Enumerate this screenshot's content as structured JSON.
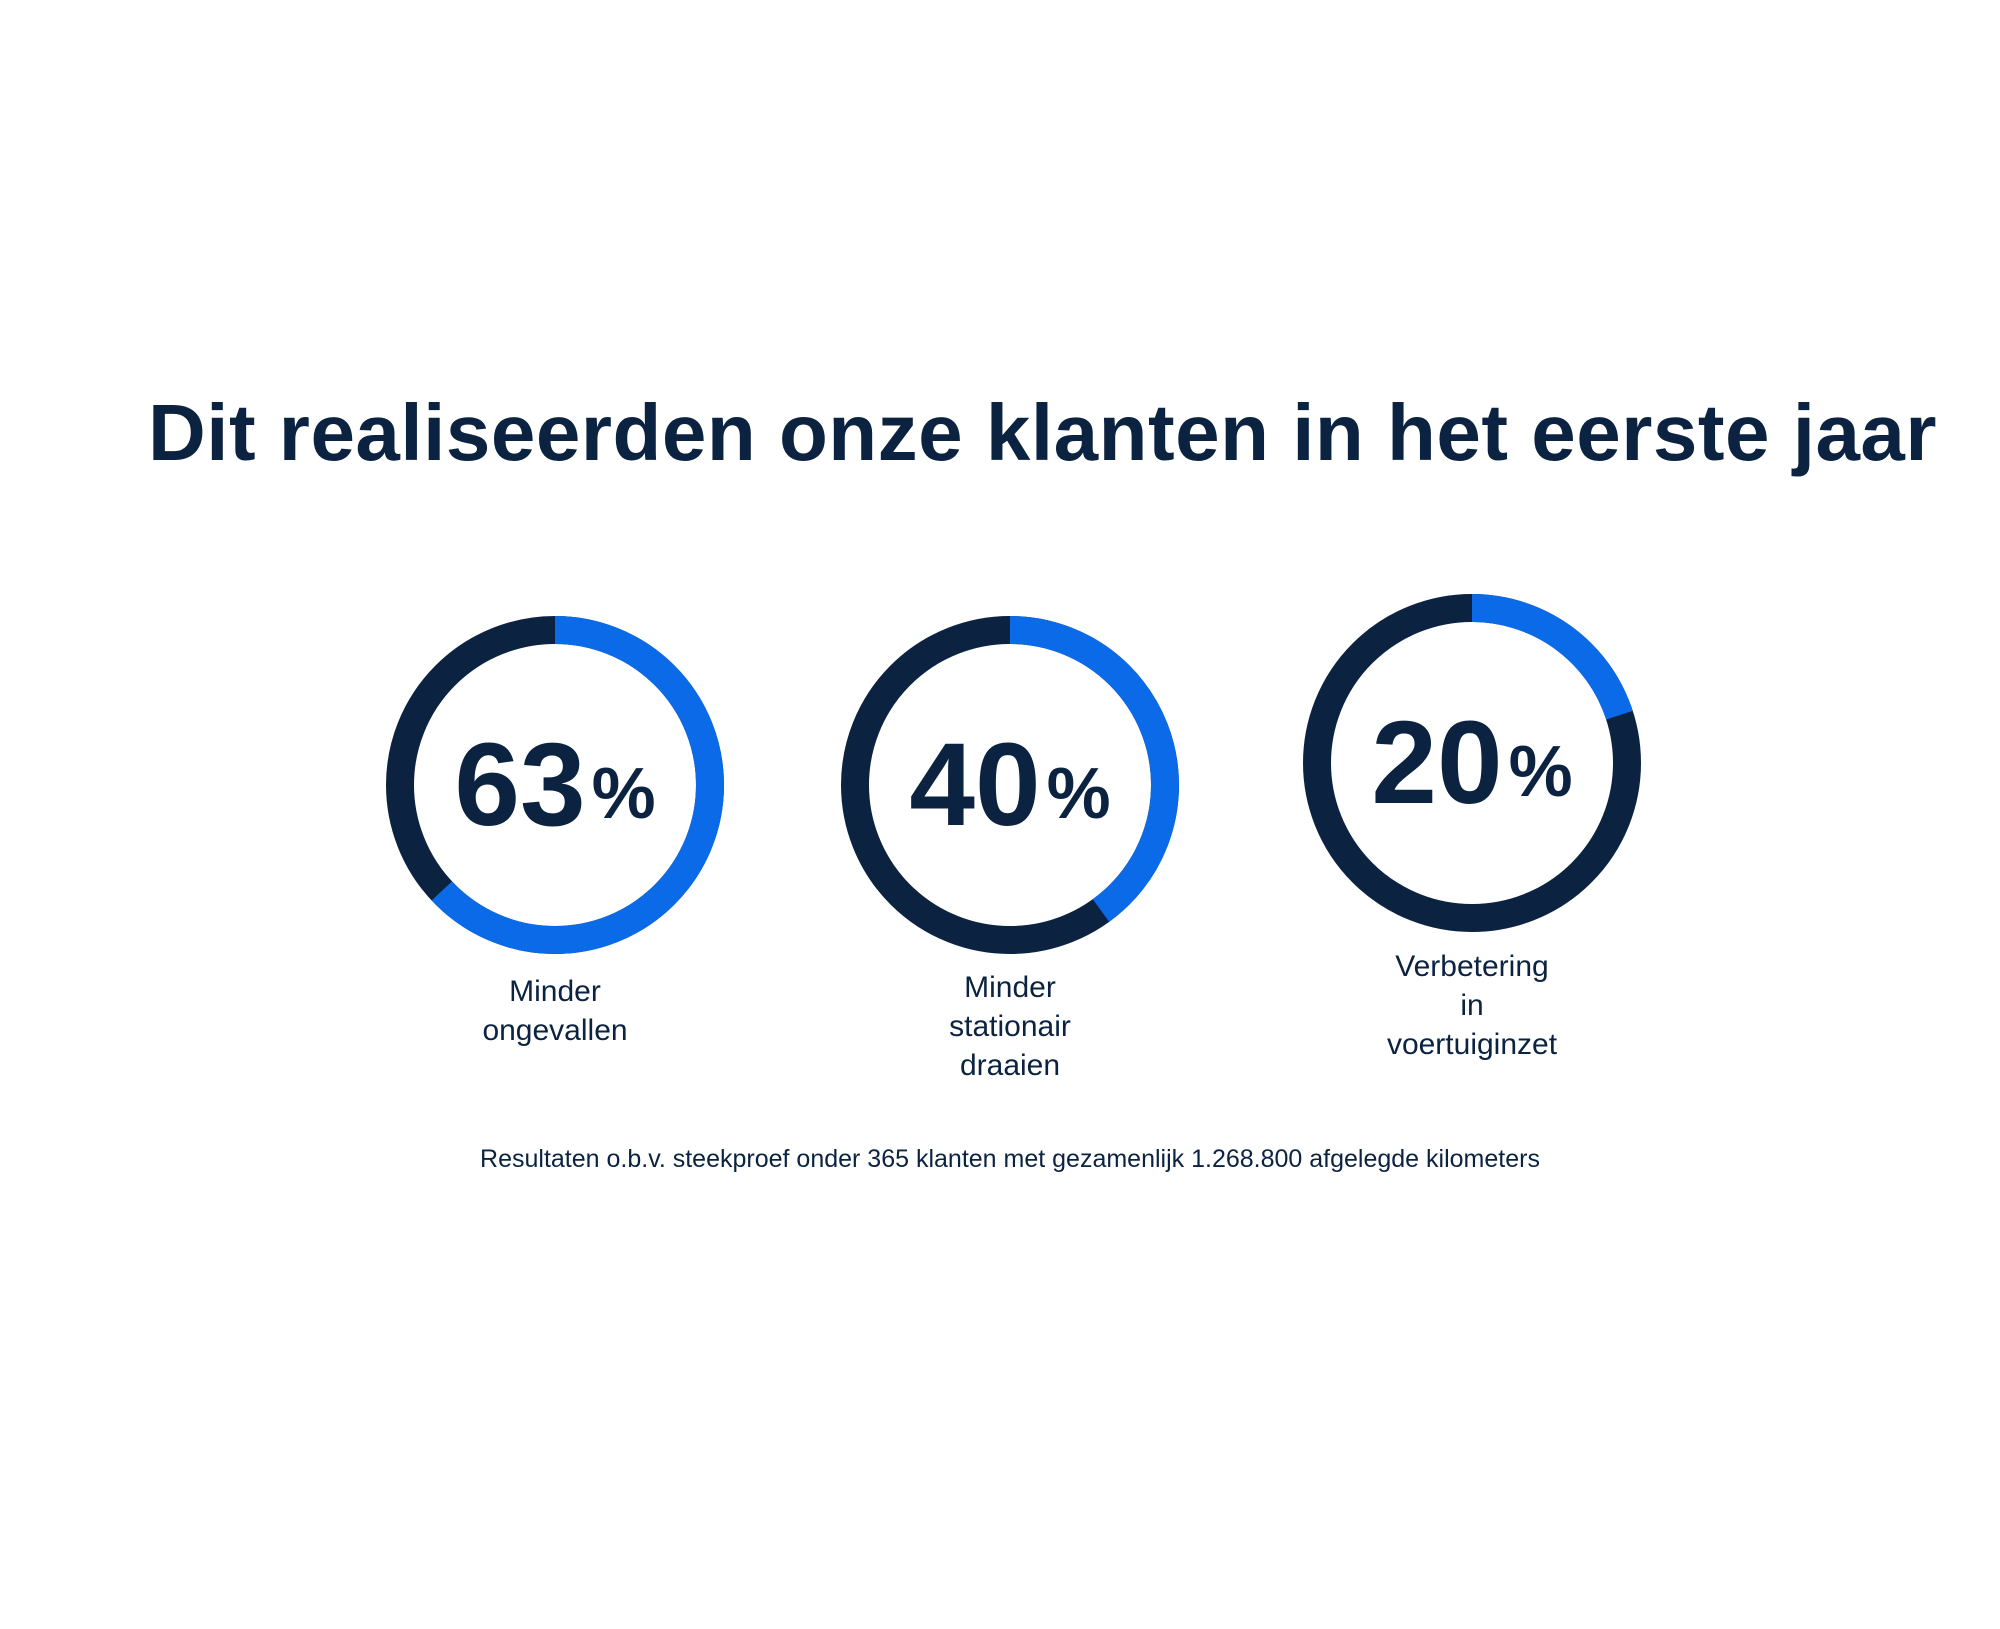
{
  "title": "Dit realiseerden onze klanten in het eerste jaar",
  "footnote": "Resultaten o.b.v. steekproef onder 365 klanten met gezamenlijk 1.268.800 afgelegde kilometers",
  "colors": {
    "accent": "#0b6ae8",
    "track": "#0b2340",
    "text": "#0b2340"
  },
  "chart_data": [
    {
      "type": "pie",
      "value_number": "63",
      "value_suffix": "%",
      "value": 63,
      "label_lines": [
        "Minder",
        "ongevallen"
      ]
    },
    {
      "type": "pie",
      "value_number": "40",
      "value_suffix": "%",
      "value": 40,
      "label_lines": [
        "Minder",
        "stationair",
        "draaien"
      ]
    },
    {
      "type": "pie",
      "value_number": "20",
      "value_suffix": "%",
      "value": 20,
      "label_lines": [
        "Verbetering",
        "in",
        "voertuiginzet"
      ]
    }
  ]
}
